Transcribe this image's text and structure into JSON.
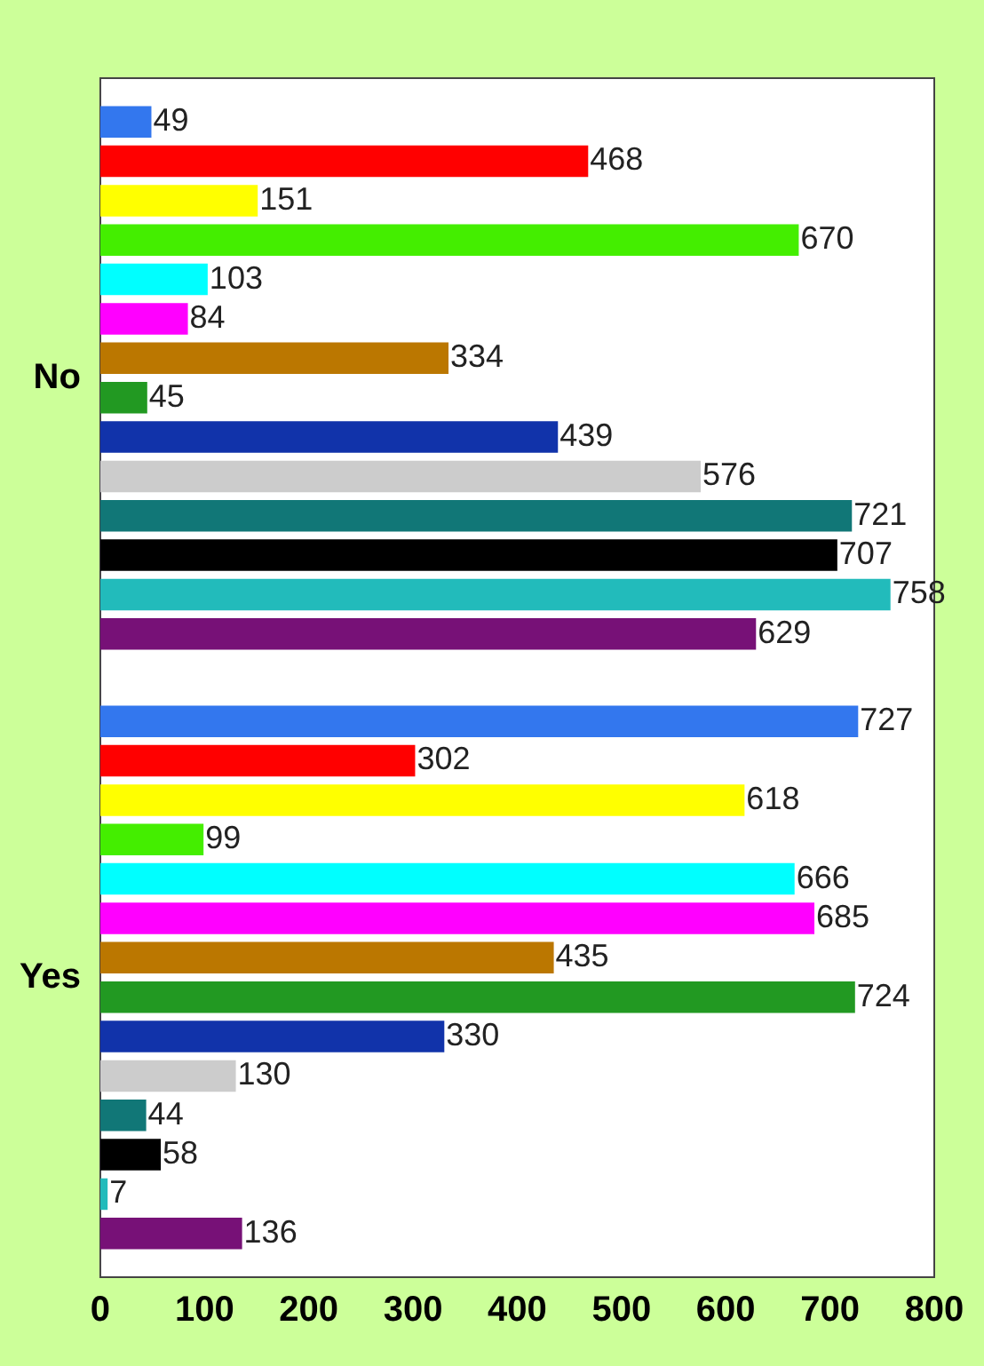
{
  "chart_data": {
    "type": "bar",
    "orientation": "horizontal",
    "categories": [
      "No",
      "Yes"
    ],
    "series": [
      {
        "color": "#3377ee",
        "values": [
          49,
          727
        ]
      },
      {
        "color": "#ff0000",
        "values": [
          468,
          302
        ]
      },
      {
        "color": "#ffff00",
        "values": [
          151,
          618
        ]
      },
      {
        "color": "#44ee00",
        "values": [
          670,
          99
        ]
      },
      {
        "color": "#00ffff",
        "values": [
          103,
          666
        ]
      },
      {
        "color": "#ff00ff",
        "values": [
          84,
          685
        ]
      },
      {
        "color": "#bb7700",
        "values": [
          334,
          435
        ]
      },
      {
        "color": "#229922",
        "values": [
          45,
          724
        ]
      },
      {
        "color": "#1133aa",
        "values": [
          439,
          330
        ]
      },
      {
        "color": "#cccccc",
        "values": [
          576,
          130
        ]
      },
      {
        "color": "#117777",
        "values": [
          721,
          44
        ]
      },
      {
        "color": "#000000",
        "values": [
          707,
          58
        ]
      },
      {
        "color": "#22bbbb",
        "values": [
          758,
          7
        ]
      },
      {
        "color": "#771177",
        "values": [
          629,
          136
        ]
      }
    ],
    "xlim": [
      0,
      800
    ],
    "xticks": [
      0,
      100,
      200,
      300,
      400,
      500,
      600,
      700,
      800
    ],
    "grid": false,
    "legend": false,
    "data_labels": true
  }
}
